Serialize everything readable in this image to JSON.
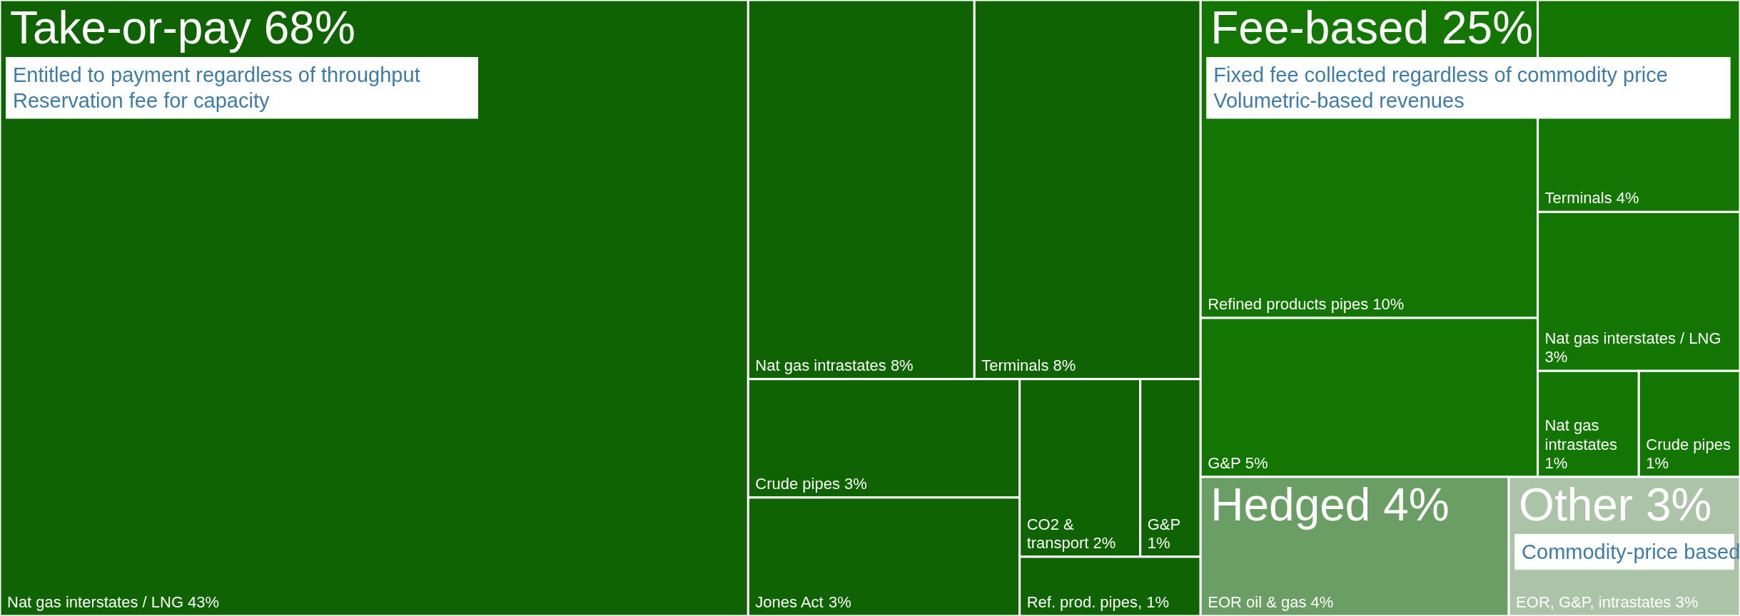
{
  "chart_data": {
    "type": "other",
    "categories": [
      "Nat gas interstates / LNG",
      "Nat gas intrastates",
      "Terminals",
      "Crude pipes",
      "Jones Act",
      "CO2 & transport",
      "G&P",
      "Ref. prod. pipes",
      "Refined products pipes",
      "G&P",
      "Terminals",
      "Nat gas interstates / LNG",
      "Nat gas intrastates",
      "Crude pipes",
      "EOR oil & gas",
      "EOR, G&P, intrastates"
    ],
    "series": [
      {
        "name": "Take-or-pay 68%",
        "color": "#0f6303",
        "values": [
          43,
          8,
          8,
          3,
          3,
          2,
          1,
          1,
          null,
          null,
          null,
          null,
          null,
          null,
          null,
          null
        ],
        "value_labels": [
          "43%",
          "8%",
          "8%",
          "3%",
          "3%",
          "2%",
          "1%",
          ", 1%",
          null,
          null,
          null,
          null,
          null,
          null,
          null,
          null
        ]
      },
      {
        "name": "Fee-based 25%",
        "color": "#137602",
        "values": [
          null,
          null,
          null,
          null,
          null,
          null,
          null,
          null,
          10,
          5,
          4,
          3,
          1,
          1,
          null,
          null
        ],
        "value_labels": [
          null,
          null,
          null,
          null,
          null,
          null,
          null,
          null,
          "10%",
          "5%",
          "4%",
          "3%",
          "1%",
          "1%",
          null,
          null
        ]
      },
      {
        "name": "Hedged 4%",
        "color": "#6b9e64",
        "values": [
          null,
          null,
          null,
          null,
          null,
          null,
          null,
          null,
          null,
          null,
          null,
          null,
          null,
          null,
          4,
          null
        ],
        "value_labels": [
          null,
          null,
          null,
          null,
          null,
          null,
          null,
          null,
          null,
          null,
          null,
          null,
          null,
          null,
          "4%",
          null
        ]
      },
      {
        "name": "Other 3%",
        "color": "#abc4a7",
        "values": [
          null,
          null,
          null,
          null,
          null,
          null,
          null,
          null,
          null,
          null,
          null,
          null,
          null,
          null,
          null,
          3
        ],
        "value_labels": [
          null,
          null,
          null,
          null,
          null,
          null,
          null,
          null,
          null,
          null,
          null,
          null,
          null,
          null,
          null,
          "3%"
        ]
      }
    ],
    "annotations": [
      {
        "text": "Entitled to payment regardless of throughput",
        "x": "Nat gas interstates / LNG"
      },
      {
        "text": "Reservation fee for capacity",
        "x": "Nat gas interstates / LNG"
      },
      {
        "text": "Fixed fee collected regardless of commodity price",
        "x": "Refined products pipes"
      },
      {
        "text": "Volumetric-based revenues",
        "x": "Refined products pipes"
      },
      {
        "text": "Commodity-price based",
        "x": "EOR, G&P, intrastates"
      }
    ]
  }
}
